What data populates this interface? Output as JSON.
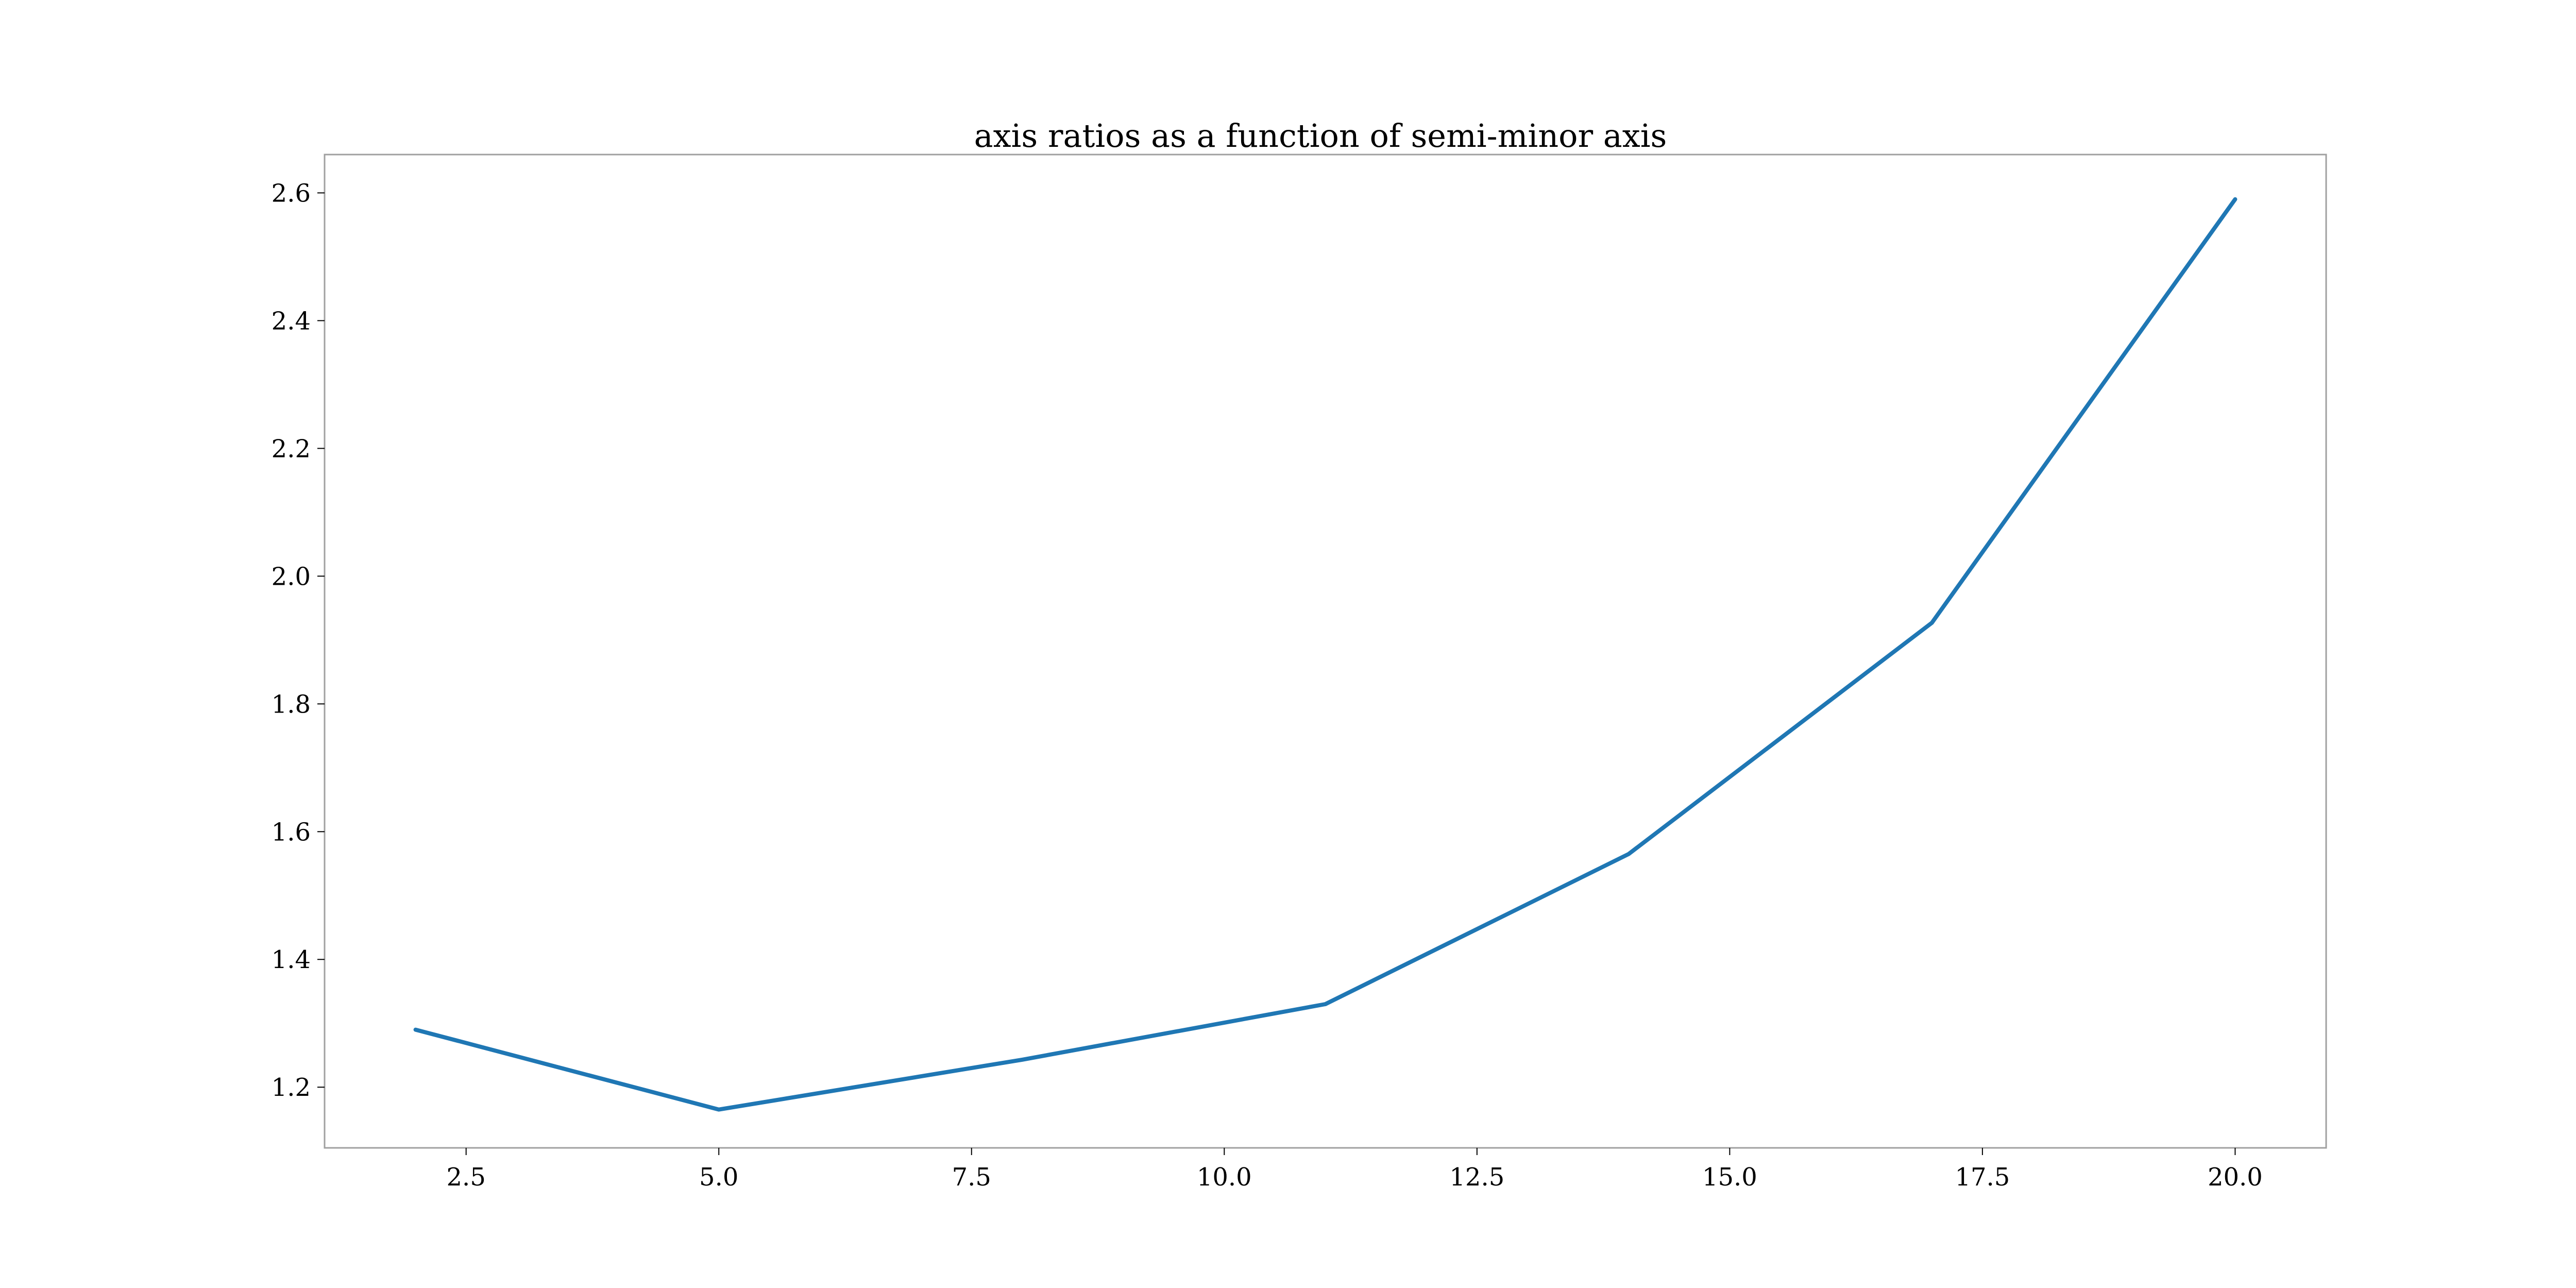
{
  "chart_data": {
    "type": "line",
    "title": "axis ratios as a function of semi-minor axis",
    "xlabel": "",
    "ylabel": "",
    "x": [
      2,
      5,
      8,
      11,
      14,
      17,
      20
    ],
    "series": [
      {
        "values": [
          1.29,
          1.165,
          1.243,
          1.33,
          1.565,
          1.927,
          2.59
        ],
        "color": "#1f77b4"
      }
    ],
    "xlim": [
      1.1,
      20.9
    ],
    "ylim": [
      1.105,
      2.66
    ],
    "xticks": [
      2.5,
      5.0,
      7.5,
      10.0,
      12.5,
      15.0,
      17.5,
      20.0
    ],
    "xtick_labels": [
      "2.5",
      "5.0",
      "7.5",
      "10.0",
      "12.5",
      "15.0",
      "17.5",
      "20.0"
    ],
    "yticks": [
      1.2,
      1.4,
      1.6,
      1.8,
      2.0,
      2.2,
      2.4,
      2.6
    ],
    "ytick_labels": [
      "1.2",
      "1.4",
      "1.6",
      "1.8",
      "2.0",
      "2.2",
      "2.4",
      "2.6"
    ],
    "grid": false,
    "legend": "none"
  }
}
